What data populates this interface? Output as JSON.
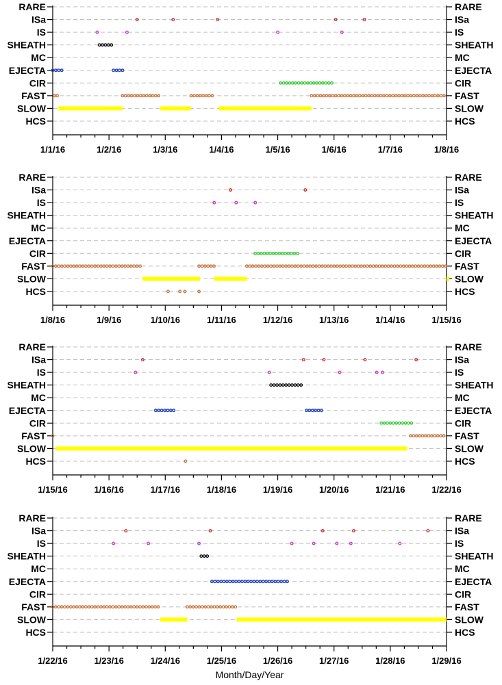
{
  "chart_data": {
    "type": "scatter",
    "xlabel": "Month/Day/Year",
    "categories": [
      "RARE",
      "ISa",
      "IS",
      "SHEATH",
      "MC",
      "EJECTA",
      "CIR",
      "FAST",
      "SLOW",
      "HCS"
    ],
    "colors": {
      "ISa": "#cc2222",
      "IS": "#cc33cc",
      "SHEATH": "#111111",
      "EJECTA": "#1f3fbf",
      "CIR": "#33cc33",
      "FAST": "#c8743c",
      "SLOW": "#ffff00",
      "HCS": "#c8743c"
    },
    "panels": [
      {
        "xlim": [
          0,
          7
        ],
        "ticks": [
          "1/1/16",
          "1/2/16",
          "1/3/16",
          "1/4/16",
          "1/5/16",
          "1/6/16",
          "1/7/16",
          "1/8/16"
        ],
        "series": [
          {
            "category": "ISa",
            "points": [
              1.5,
              2.14,
              2.93,
              5.03,
              5.54
            ]
          },
          {
            "category": "IS",
            "points": [
              0.79,
              1.32,
              4.0,
              5.14
            ]
          },
          {
            "category": "SHEATH",
            "ranges": [
              [
                0.83,
                1.05
              ]
            ]
          },
          {
            "category": "EJECTA",
            "ranges": [
              [
                0.0,
                0.17
              ],
              [
                1.08,
                1.28
              ]
            ]
          },
          {
            "category": "CIR",
            "ranges": [
              [
                4.05,
                5.0
              ]
            ]
          },
          {
            "category": "FAST",
            "points": [
              0.03,
              0.08
            ],
            "ranges": [
              [
                1.24,
                1.91
              ],
              [
                2.46,
                2.86
              ],
              [
                4.6,
                7.0
              ]
            ]
          },
          {
            "category": "SLOW",
            "ranges": [
              [
                0.1,
                1.24
              ],
              [
                1.91,
                2.46
              ],
              [
                2.95,
                4.6
              ]
            ]
          }
        ]
      },
      {
        "xlim": [
          0,
          7
        ],
        "ticks": [
          "1/8/16",
          "1/9/16",
          "1/10/16",
          "1/11/16",
          "1/12/16",
          "1/13/16",
          "1/14/16",
          "1/15/16"
        ],
        "series": [
          {
            "category": "ISa",
            "points": [
              3.16,
              4.49
            ]
          },
          {
            "category": "IS",
            "points": [
              2.87,
              3.26,
              3.6
            ]
          },
          {
            "category": "CIR",
            "ranges": [
              [
                3.6,
                4.36
              ]
            ]
          },
          {
            "category": "FAST",
            "ranges": [
              [
                0.0,
                1.6
              ],
              [
                2.6,
                2.87
              ],
              [
                3.45,
                7.0
              ]
            ]
          },
          {
            "category": "SLOW",
            "ranges": [
              [
                1.6,
                2.62
              ],
              [
                2.87,
                3.45
              ],
              [
                7.0,
                7.05
              ]
            ]
          },
          {
            "category": "HCS",
            "points": [
              2.05,
              2.26,
              2.35,
              2.6
            ]
          }
        ]
      },
      {
        "xlim": [
          0,
          7
        ],
        "ticks": [
          "1/15/16",
          "1/16/16",
          "1/17/16",
          "1/18/16",
          "1/19/16",
          "1/20/16",
          "1/21/16",
          "1/22/16"
        ],
        "series": [
          {
            "category": "ISa",
            "points": [
              1.6,
              4.46,
              4.82,
              5.55,
              6.46
            ]
          },
          {
            "category": "IS",
            "points": [
              1.47,
              3.85,
              5.1,
              5.76,
              5.86
            ]
          },
          {
            "category": "SHEATH",
            "ranges": [
              [
                3.88,
                4.46
              ]
            ]
          },
          {
            "category": "EJECTA",
            "ranges": [
              [
                1.83,
                2.17
              ],
              [
                4.51,
                4.83
              ]
            ]
          },
          {
            "category": "CIR",
            "ranges": [
              [
                5.84,
                6.42
              ]
            ]
          },
          {
            "category": "FAST",
            "points": [
              0.0
            ],
            "ranges": [
              [
                6.36,
                7.0
              ]
            ]
          },
          {
            "category": "SLOW",
            "ranges": [
              [
                0.05,
                6.3
              ]
            ]
          },
          {
            "category": "HCS",
            "points": [
              2.36
            ]
          }
        ]
      },
      {
        "xlim": [
          0,
          7
        ],
        "ticks": [
          "1/22/16",
          "1/23/16",
          "1/24/16",
          "1/25/16",
          "1/26/16",
          "1/27/16",
          "1/28/16",
          "1/29/16"
        ],
        "series": [
          {
            "category": "ISa",
            "points": [
              1.3,
              2.8,
              4.8,
              5.35,
              6.67
            ]
          },
          {
            "category": "IS",
            "points": [
              1.08,
              1.7,
              2.6,
              4.25,
              4.64,
              5.05,
              5.3,
              6.17
            ]
          },
          {
            "category": "SHEATH",
            "ranges": [
              [
                2.64,
                2.8
              ]
            ]
          },
          {
            "category": "EJECTA",
            "ranges": [
              [
                2.83,
                4.22
              ]
            ]
          },
          {
            "category": "FAST",
            "ranges": [
              [
                0.0,
                1.91
              ],
              [
                2.39,
                3.27
              ]
            ]
          },
          {
            "category": "SLOW",
            "ranges": [
              [
                1.91,
                2.39
              ],
              [
                3.27,
                7.0
              ]
            ]
          }
        ]
      }
    ]
  }
}
